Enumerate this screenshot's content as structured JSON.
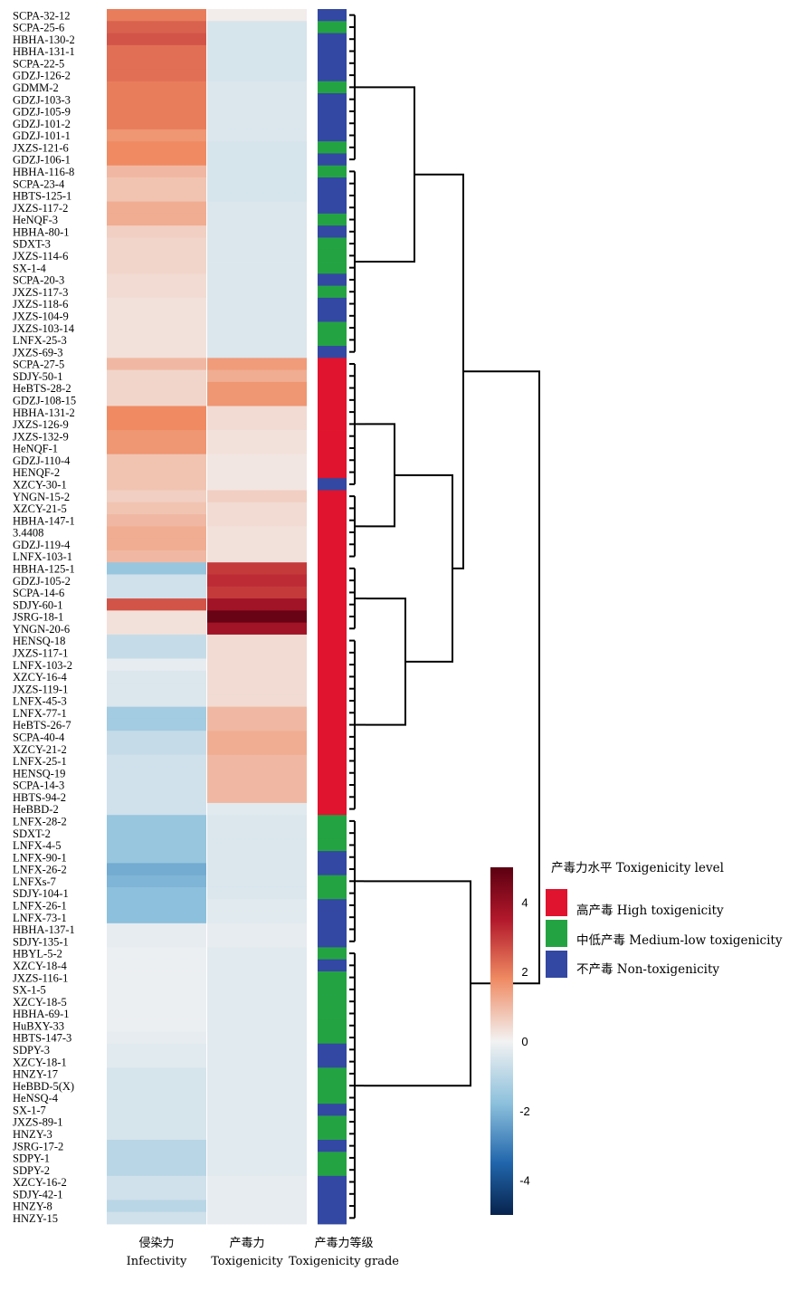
{
  "chart_data": {
    "type": "heatmap",
    "columns": [
      {
        "label_cn": "侵染力",
        "label_en": "Infectivity"
      },
      {
        "label_cn": "产毒力",
        "label_en": "Toxigenicity"
      },
      {
        "label_cn": "产毒力等级",
        "label_en": "Toxigenicity grade"
      }
    ],
    "rows": [
      "SCPA-32-12",
      "SCPA-25-6",
      "HBHA-130-2",
      "HBHA-131-1",
      "SCPA-22-5",
      "GDZJ-126-2",
      "GDMM-2",
      "GDZJ-103-3",
      "GDZJ-105-9",
      "GDZJ-101-2",
      "GDZJ-101-1",
      "JXZS-121-6",
      "GDZJ-106-1",
      "HBHA-116-8",
      "SCPA-23-4",
      "HBTS-125-1",
      "JXZS-117-2",
      "HeNQF-3",
      "HBHA-80-1",
      "SDXT-3",
      "JXZS-114-6",
      "SX-1-4",
      "SCPA-20-3",
      "JXZS-117-3",
      "JXZS-118-6",
      "JXZS-104-9",
      "JXZS-103-14",
      "LNFX-25-3",
      "JXZS-69-3",
      "SCPA-27-5",
      "SDJY-50-1",
      "HeBTS-28-2",
      "GDZJ-108-15",
      "HBHA-131-2",
      "JXZS-126-9",
      "JXZS-132-9",
      "HeNQF-1",
      "GDZJ-110-4",
      "HENQF-2",
      "XZCY-30-1",
      "YNGN-15-2",
      "XZCY-21-5",
      "HBHA-147-1",
      "3.4408",
      "GDZJ-119-4",
      "LNFX-103-1",
      "HBHA-125-1",
      "GDZJ-105-2",
      "SCPA-14-6",
      "SDJY-60-1",
      "JSRG-18-1",
      "YNGN-20-6",
      "HENSQ-18",
      "JXZS-117-1",
      "LNFX-103-2",
      "XZCY-16-4",
      "JXZS-119-1",
      "LNFX-45-3",
      "LNFX-77-1",
      "HeBTS-26-7",
      "SCPA-40-4",
      "XZCY-21-2",
      "LNFX-25-1",
      "HENSQ-19",
      "SCPA-14-3",
      "HBTS-94-2",
      "HeBBD-2",
      "LNFX-28-2",
      "SDXT-2",
      "LNFX-4-5",
      "LNFX-90-1",
      "LNFX-26-2",
      "LNFXs-7",
      "SDJY-104-1",
      "LNFX-26-1",
      "LNFX-73-1",
      "HBHA-137-1",
      "SDJY-135-1",
      "HBYL-5-2",
      "XZCY-18-4",
      "JXZS-116-1",
      "SX-1-5",
      "XZCY-18-5",
      "HBHA-69-1",
      "HuBXY-33",
      "HBTS-147-3",
      "SDPY-3",
      "XZCY-18-1",
      "HNZY-17",
      "HeBBD-5(X)",
      "HeNSQ-4",
      "SX-1-7",
      "JXZS-89-1",
      "HNZY-3",
      "JSRG-17-2",
      "SDPY-1",
      "SDPY-2",
      "XZCY-16-2",
      "SDJY-42-1",
      "HNZY-8",
      "HNZY-15"
    ],
    "infectivity": [
      2.0,
      2.4,
      2.6,
      2.2,
      2.2,
      2.2,
      2.0,
      2.0,
      2.0,
      2.0,
      1.6,
      1.8,
      1.8,
      1.0,
      0.8,
      0.8,
      1.2,
      1.2,
      0.6,
      0.5,
      0.5,
      0.5,
      0.4,
      0.4,
      0.3,
      0.3,
      0.3,
      0.3,
      0.3,
      1.0,
      0.5,
      0.5,
      0.5,
      1.8,
      1.8,
      1.6,
      1.6,
      0.8,
      0.8,
      0.8,
      0.6,
      0.8,
      1.0,
      1.2,
      1.2,
      1.0,
      -1.6,
      -0.6,
      -0.6,
      2.6,
      0.3,
      0.3,
      -0.8,
      -0.8,
      -0.2,
      -0.4,
      -0.4,
      -0.4,
      -1.4,
      -1.4,
      -0.8,
      -0.8,
      -0.6,
      -0.6,
      -0.6,
      -0.6,
      -0.6,
      -1.6,
      -1.6,
      -1.6,
      -1.6,
      -2.2,
      -2.0,
      -1.8,
      -1.8,
      -1.8,
      -0.2,
      -0.2,
      -0.1,
      -0.1,
      -0.1,
      -0.1,
      -0.1,
      -0.1,
      -0.1,
      -0.2,
      -0.3,
      -0.3,
      -0.5,
      -0.5,
      -0.5,
      -0.5,
      -0.5,
      -0.5,
      -1.0,
      -1.0,
      -1.0,
      -0.6,
      -0.6,
      -1.0,
      -0.6
    ],
    "toxigenicity": [
      0.1,
      -0.5,
      -0.5,
      -0.5,
      -0.5,
      -0.5,
      -0.4,
      -0.4,
      -0.4,
      -0.4,
      -0.4,
      -0.5,
      -0.5,
      -0.5,
      -0.5,
      -0.5,
      -0.4,
      -0.4,
      -0.4,
      -0.4,
      -0.4,
      -0.4,
      -0.4,
      -0.4,
      -0.4,
      -0.4,
      -0.4,
      -0.4,
      -0.4,
      1.5,
      1.2,
      1.6,
      1.6,
      0.4,
      0.4,
      0.3,
      0.3,
      0.2,
      0.2,
      0.2,
      0.6,
      0.4,
      0.4,
      0.3,
      0.3,
      0.3,
      3.0,
      3.2,
      3.0,
      3.8,
      4.8,
      3.8,
      0.4,
      0.4,
      0.4,
      0.4,
      0.4,
      0.4,
      1.0,
      1.0,
      1.2,
      1.2,
      1.0,
      1.0,
      1.0,
      1.0,
      -0.3,
      -0.4,
      -0.4,
      -0.4,
      -0.4,
      -0.4,
      -0.4,
      -0.4,
      -0.3,
      -0.3,
      -0.2,
      -0.2,
      -0.3,
      -0.3,
      -0.3,
      -0.3,
      -0.3,
      -0.3,
      -0.3,
      -0.3,
      -0.3,
      -0.3,
      -0.3,
      -0.3,
      -0.3,
      -0.3,
      -0.3,
      -0.3,
      -0.3,
      -0.3,
      -0.3,
      -0.2,
      -0.2,
      -0.2,
      -0.2
    ],
    "grade": [
      "N",
      "M",
      "N",
      "N",
      "N",
      "N",
      "M",
      "N",
      "N",
      "N",
      "N",
      "M",
      "N",
      "M",
      "N",
      "N",
      "N",
      "M",
      "N",
      "M",
      "M",
      "M",
      "N",
      "M",
      "N",
      "N",
      "M",
      "M",
      "N",
      "H",
      "H",
      "H",
      "H",
      "H",
      "H",
      "H",
      "H",
      "H",
      "H",
      "N",
      "H",
      "H",
      "H",
      "H",
      "H",
      "H",
      "H",
      "H",
      "H",
      "H",
      "H",
      "H",
      "H",
      "H",
      "H",
      "H",
      "H",
      "H",
      "H",
      "H",
      "H",
      "H",
      "H",
      "H",
      "H",
      "H",
      "H",
      "M",
      "M",
      "M",
      "N",
      "N",
      "M",
      "M",
      "N",
      "N",
      "N",
      "N",
      "M",
      "N",
      "M",
      "M",
      "M",
      "M",
      "M",
      "M",
      "N",
      "N",
      "M",
      "M",
      "M",
      "N",
      "M",
      "M",
      "N",
      "M",
      "M",
      "N",
      "N",
      "N",
      "N"
    ],
    "colorbar": {
      "min": -5,
      "max": 5,
      "ticks": [
        4,
        2,
        0,
        -2,
        -4
      ]
    },
    "legend": {
      "title": "产毒力水平 Toxigenicity level",
      "items": [
        {
          "key": "H",
          "label": "高产毒 High toxigenicity",
          "color": "#e0142e"
        },
        {
          "key": "M",
          "label": "中低产毒 Medium-low toxigenicity",
          "color": "#24a343"
        },
        {
          "key": "N",
          "label": "不产毒 Non-toxigenicity",
          "color": "#3348a2"
        }
      ]
    },
    "dendrogram": "right"
  }
}
